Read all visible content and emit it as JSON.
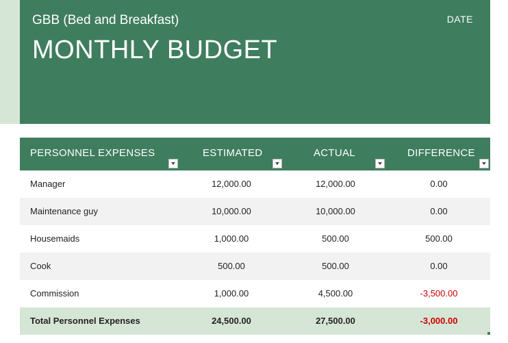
{
  "header": {
    "subtitle": "GBB (Bed and Breakfast)",
    "title": "MONTHLY BUDGET",
    "date_label": "DATE"
  },
  "colors": {
    "header_bg": "#3f7d5f",
    "total_row_bg": "#d6e6d6",
    "negative_text": "#cc0000"
  },
  "table": {
    "columns": [
      "PERSONNEL EXPENSES",
      "ESTIMATED",
      "ACTUAL",
      "DIFFERENCE"
    ],
    "rows": [
      [
        "Manager",
        "12,000.00",
        "12,000.00",
        "0.00"
      ],
      [
        "Maintenance guy",
        "10,000.00",
        "10,000.00",
        "0.00"
      ],
      [
        "Housemaids",
        "1,000.00",
        "500.00",
        "500.00"
      ],
      [
        "Cook",
        "500.00",
        "500.00",
        "0.00"
      ],
      [
        "Commission",
        "1,000.00",
        "4,500.00",
        "-3,500.00"
      ]
    ],
    "total": [
      "Total Personnel Expenses",
      "24,500.00",
      "27,500.00",
      "-3,000.00"
    ]
  },
  "icons": {
    "column_filter": "dropdown-arrow-icon"
  }
}
